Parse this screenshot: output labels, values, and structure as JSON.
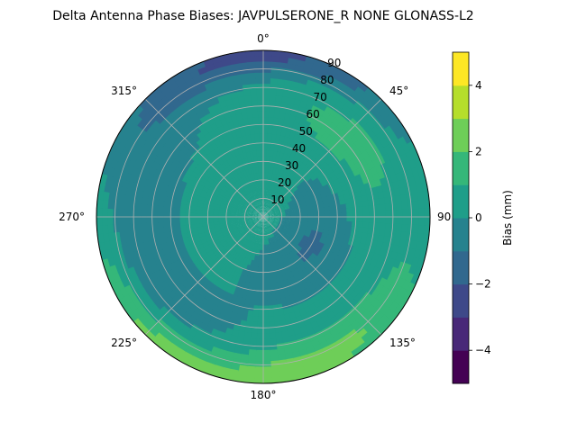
{
  "chart_data": {
    "type": "heatmap",
    "projection": "polar",
    "title": "Delta Antenna Phase Biases: JAVPULSERONE_R  NONE GLONASS-L2",
    "theta_zero_location": "north",
    "theta_direction": "clockwise",
    "angle_ticks": [
      "0°",
      "45°",
      "90",
      "135°",
      "180°",
      "225°",
      "270°",
      "315°"
    ],
    "radial_ticks": [
      "10",
      "20",
      "30",
      "40",
      "50",
      "60",
      "70",
      "80",
      "90"
    ],
    "radial_range": [
      0,
      90
    ],
    "grid": true,
    "colorbar": {
      "label": "Bias (mm)",
      "range": [
        -5,
        5
      ],
      "levels": [
        -5,
        -4,
        -3,
        -2,
        -1,
        0,
        1,
        2,
        3,
        4,
        5
      ],
      "ticks": [
        "−4",
        "−2",
        "0",
        "2",
        "4"
      ],
      "colors": [
        "#440154",
        "#482878",
        "#3e4989",
        "#31688e",
        "#26828e",
        "#1f9e89",
        "#35b779",
        "#6ece58",
        "#b5de2b",
        "#fde725"
      ]
    },
    "regions": [
      {
        "level": "-4 to -3",
        "near": "zenith angle 80-90, azimuth 330-30"
      },
      {
        "level": "-3 to -2",
        "near": "zenith angle 70-90, azimuth 300-45"
      },
      {
        "level": "-2 to -1",
        "near": "zenith angle 10-50, azimuth 70-180; zenith angle 50-90, azimuth 200-300"
      },
      {
        "level": "0 to 1",
        "near": "bulk of the field"
      },
      {
        "level": "1 to 2",
        "near": "zenith angle 20-50, azimuth 270-330; zenith angle 60-90, azimuth 120-260"
      },
      {
        "level": "2 to 3",
        "near": "zenith angle 75-90, azimuth 150-230"
      },
      {
        "level": "3 to 4",
        "near": "zenith angle 85-90, azimuth 170-210"
      }
    ]
  }
}
